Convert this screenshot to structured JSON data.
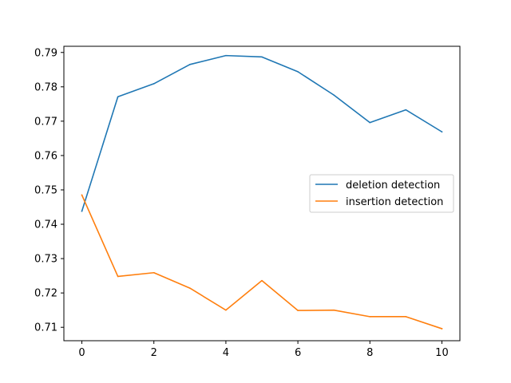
{
  "chart_data": {
    "type": "line",
    "title": "",
    "xlabel": "",
    "ylabel": "",
    "x": [
      0,
      1,
      2,
      3,
      4,
      5,
      6,
      7,
      8,
      9,
      10
    ],
    "xlim": [
      -0.5,
      10.5
    ],
    "ylim": [
      0.7061,
      0.7918
    ],
    "xticks": [
      0,
      2,
      4,
      6,
      8,
      10
    ],
    "yticks": [
      0.71,
      0.72,
      0.73,
      0.74,
      0.75,
      0.76,
      0.77,
      0.78,
      0.79
    ],
    "grid": false,
    "legend_position": "center-right",
    "series": [
      {
        "name": "deletion detection",
        "color": "#1f77b4",
        "values": [
          0.7438,
          0.7771,
          0.7809,
          0.7865,
          0.7891,
          0.7887,
          0.7844,
          0.7776,
          0.7696,
          0.7733,
          0.7669
        ]
      },
      {
        "name": "insertion detection",
        "color": "#ff7f0e",
        "values": [
          0.7485,
          0.7248,
          0.7259,
          0.7214,
          0.715,
          0.7236,
          0.7149,
          0.715,
          0.7131,
          0.7131,
          0.7096
        ]
      }
    ]
  }
}
